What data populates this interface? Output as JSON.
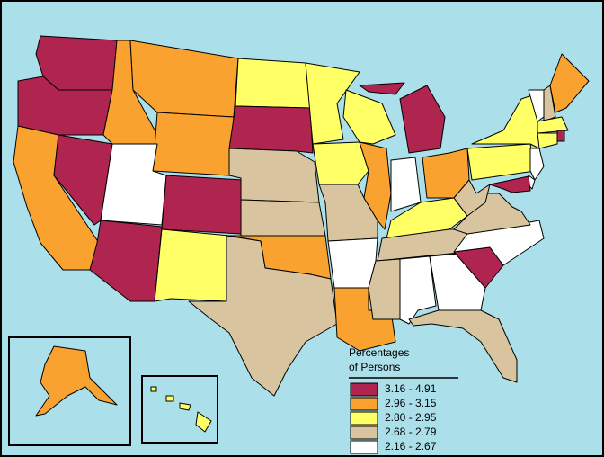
{
  "legend": {
    "title_lines": [
      "Percentages",
      "of Persons"
    ],
    "items": [
      {
        "label": "3.16 - 4.91",
        "color": "#b0254f"
      },
      {
        "label": "2.96 - 3.15",
        "color": "#f9a22f"
      },
      {
        "label": "2.80 - 2.95",
        "color": "#ffff66"
      },
      {
        "label": "2.68 - 2.79",
        "color": "#d8c5a0"
      },
      {
        "label": "2.16 - 2.67",
        "color": "#ffffff"
      }
    ]
  }
}
